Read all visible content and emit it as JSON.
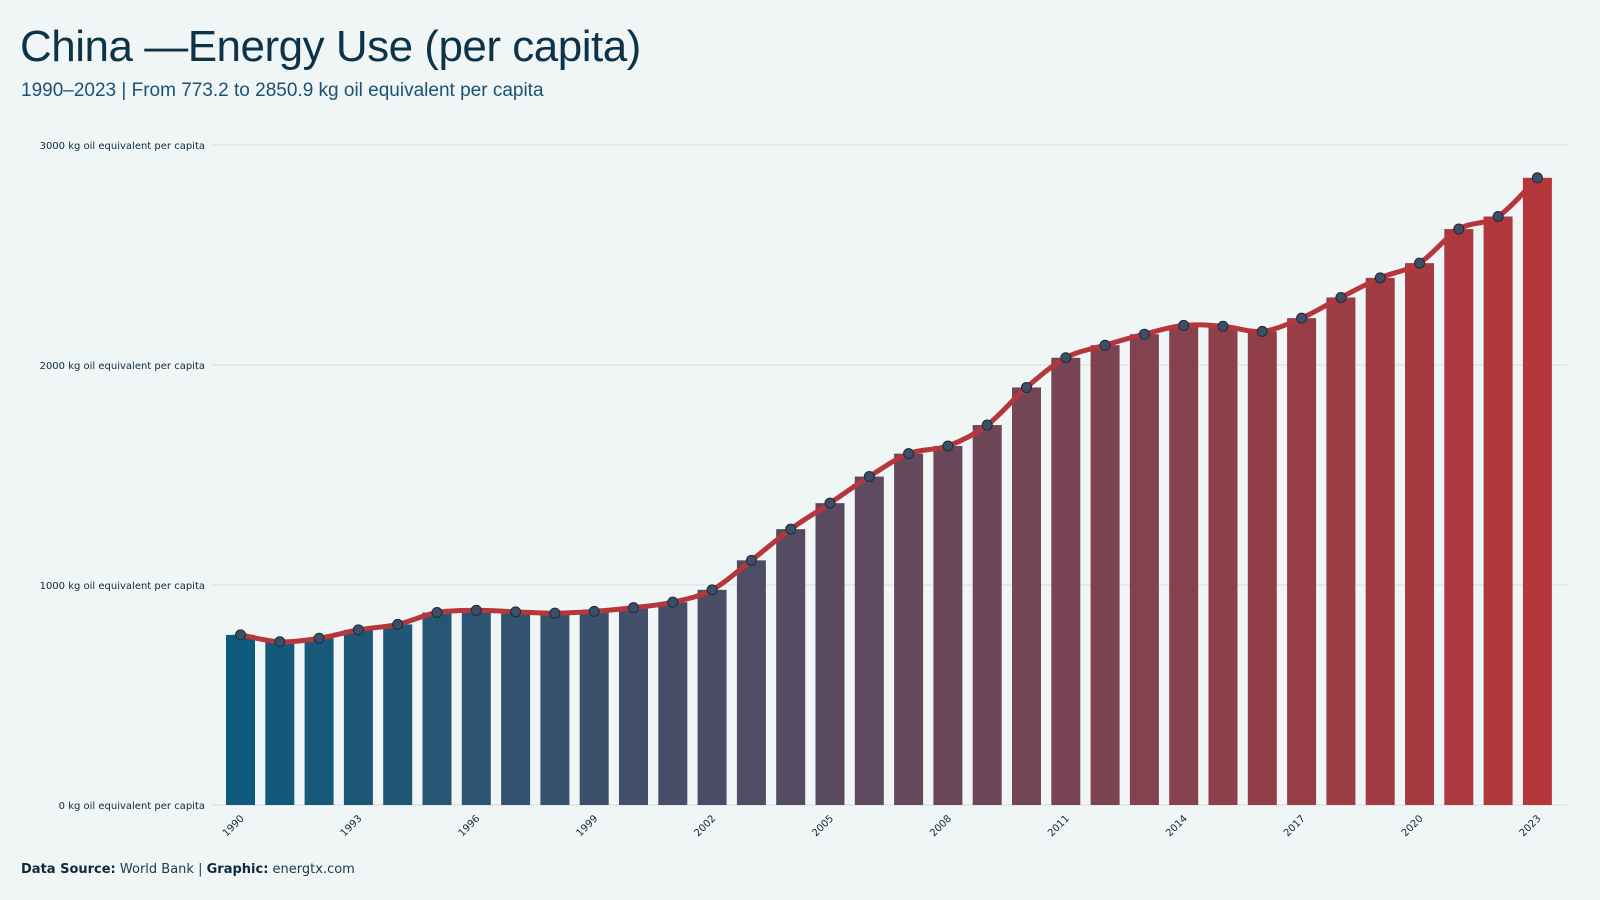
{
  "header": {
    "title": "China —Energy Use (per capita)",
    "subtitle": "1990–2023 | From 773.2 to 2850.9 kg oil equivalent per capita"
  },
  "footer": {
    "source_label": "Data Source:",
    "source_value": "World Bank",
    "separator": "|",
    "graphic_label": "Graphic:",
    "graphic_value": "energtx.com"
  },
  "colors": {
    "background": "#f0f5f5",
    "bar_start": "#0e5a7e",
    "bar_end": "#b5373b",
    "line": "#b5373b",
    "marker_fill": "#3b4f66",
    "grid": "#d3dede"
  },
  "chart_data": {
    "type": "bar",
    "unit_suffix": " kg oil equivalent per capita",
    "ylim": [
      0,
      3000
    ],
    "yticks": [
      0,
      1000,
      2000,
      3000
    ],
    "ytick_labels": [
      "0 kg oil equivalent per capita",
      "1000 kg oil equivalent per capita",
      "2000 kg oil equivalent per capita",
      "3000 kg oil equivalent per capita"
    ],
    "xtick_labels": [
      "1990",
      "1993",
      "1996",
      "1999",
      "2002",
      "2005",
      "2008",
      "2011",
      "2014",
      "2017",
      "2020",
      "2023"
    ],
    "grid": true,
    "legend": "none",
    "categories": [
      "1990",
      "1991",
      "1992",
      "1993",
      "1994",
      "1995",
      "1996",
      "1997",
      "1998",
      "1999",
      "2000",
      "2001",
      "2002",
      "2003",
      "2004",
      "2005",
      "2006",
      "2007",
      "2008",
      "2009",
      "2010",
      "2011",
      "2012",
      "2013",
      "2014",
      "2015",
      "2016",
      "2017",
      "2018",
      "2019",
      "2020",
      "2021",
      "2022",
      "2023"
    ],
    "values": [
      773.2,
      742,
      758,
      796,
      821,
      875,
      885,
      878,
      872,
      880,
      897,
      922,
      978,
      1112,
      1254,
      1372,
      1493,
      1597,
      1632,
      1727,
      1898,
      2033,
      2090,
      2140,
      2180,
      2176,
      2153,
      2213,
      2307,
      2396,
      2463,
      2618,
      2675,
      2850.9
    ]
  }
}
